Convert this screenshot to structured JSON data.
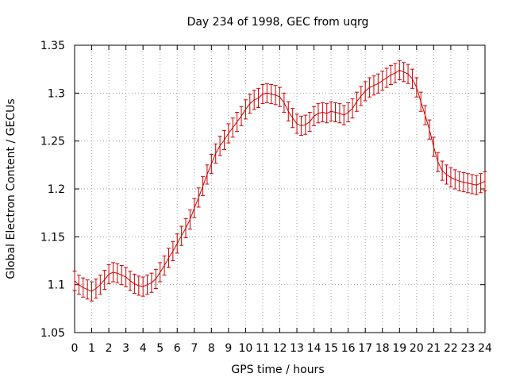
{
  "chart_data": {
    "type": "line",
    "title": "Day 234 of 1998, GEC from uqrg",
    "xlabel": "GPS time / hours",
    "ylabel": "Global Electron Content / GECUs",
    "xlim": [
      0,
      24
    ],
    "ylim": [
      1.05,
      1.35
    ],
    "grid": true,
    "color": "#cc0000",
    "x_ticks": [
      "0",
      "1",
      "2",
      "3",
      "4",
      "5",
      "6",
      "7",
      "8",
      "9",
      "10",
      "11",
      "12",
      "13",
      "14",
      "15",
      "16",
      "17",
      "18",
      "19",
      "20",
      "21",
      "22",
      "23",
      "24"
    ],
    "y_ticks": [
      "1.05",
      "1.1",
      "1.15",
      "1.2",
      "1.25",
      "1.3",
      "1.35"
    ],
    "series": [
      {
        "name": "GEC",
        "error": 0.01,
        "x": [
          0,
          0.25,
          0.5,
          0.75,
          1,
          1.25,
          1.5,
          1.75,
          2,
          2.25,
          2.5,
          2.75,
          3,
          3.25,
          3.5,
          3.75,
          4,
          4.25,
          4.5,
          4.75,
          5,
          5.25,
          5.5,
          5.75,
          6,
          6.25,
          6.5,
          6.75,
          7,
          7.25,
          7.5,
          7.75,
          8,
          8.25,
          8.5,
          8.75,
          9,
          9.25,
          9.5,
          9.75,
          10,
          10.25,
          10.5,
          10.75,
          11,
          11.25,
          11.5,
          11.75,
          12,
          12.25,
          12.5,
          12.75,
          13,
          13.25,
          13.5,
          13.75,
          14,
          14.25,
          14.5,
          14.75,
          15,
          15.25,
          15.5,
          15.75,
          16,
          16.25,
          16.5,
          16.75,
          17,
          17.25,
          17.5,
          17.75,
          18,
          18.25,
          18.5,
          18.75,
          19,
          19.25,
          19.5,
          19.75,
          20,
          20.25,
          20.5,
          20.75,
          21,
          21.25,
          21.5,
          21.75,
          22,
          22.25,
          22.5,
          22.75,
          23,
          23.25,
          23.5,
          23.75,
          24
        ],
        "y": [
          1.104,
          1.1,
          1.097,
          1.095,
          1.093,
          1.096,
          1.1,
          1.105,
          1.111,
          1.113,
          1.112,
          1.11,
          1.108,
          1.104,
          1.101,
          1.099,
          1.098,
          1.1,
          1.102,
          1.106,
          1.113,
          1.12,
          1.128,
          1.135,
          1.143,
          1.151,
          1.159,
          1.168,
          1.18,
          1.191,
          1.203,
          1.215,
          1.226,
          1.237,
          1.245,
          1.251,
          1.258,
          1.264,
          1.27,
          1.276,
          1.283,
          1.289,
          1.293,
          1.295,
          1.299,
          1.3,
          1.299,
          1.298,
          1.296,
          1.29,
          1.281,
          1.274,
          1.268,
          1.266,
          1.267,
          1.27,
          1.276,
          1.279,
          1.28,
          1.279,
          1.281,
          1.28,
          1.279,
          1.277,
          1.28,
          1.284,
          1.291,
          1.297,
          1.302,
          1.306,
          1.308,
          1.31,
          1.313,
          1.316,
          1.319,
          1.321,
          1.324,
          1.322,
          1.32,
          1.315,
          1.306,
          1.291,
          1.277,
          1.262,
          1.244,
          1.228,
          1.219,
          1.215,
          1.212,
          1.21,
          1.208,
          1.207,
          1.206,
          1.205,
          1.204,
          1.206,
          1.208
        ]
      }
    ]
  }
}
